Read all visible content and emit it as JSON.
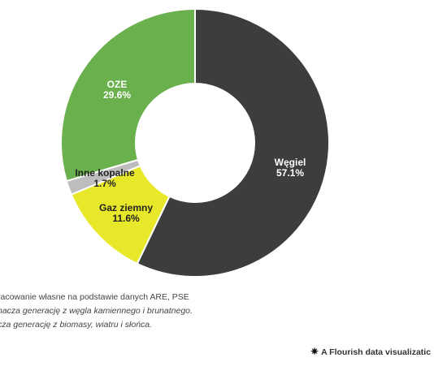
{
  "chart_data": {
    "type": "pie",
    "style": "donut",
    "slices": [
      {
        "label": "Węgiel",
        "value": 57.1,
        "value_label": "57.1%",
        "color": "#3d3d3d",
        "label_color": "#ffffff"
      },
      {
        "label": "Gaz ziemny",
        "value": 11.6,
        "value_label": "11.6%",
        "color": "#e8e82a",
        "label_color": "#222222"
      },
      {
        "label": "Inne kopalne",
        "value": 1.7,
        "value_label": "1.7%",
        "color": "#bdbdbd",
        "label_color": "#222222"
      },
      {
        "label": "OZE",
        "value": 29.6,
        "value_label": "29.6%",
        "color": "#6ab04c",
        "label_color": "#ffffff"
      }
    ],
    "start_angle": "top (12 o'clock), clockwise",
    "legend": "none",
    "title": ""
  },
  "notes": [
    "racowanie własne na podstawie danych ARE, PSE",
    "nacza generację z węgla kamiennego i brunatnego.",
    "cza generację z biomasy, wiatru i słońca."
  ],
  "credit": "A Flourish data visualizatic"
}
